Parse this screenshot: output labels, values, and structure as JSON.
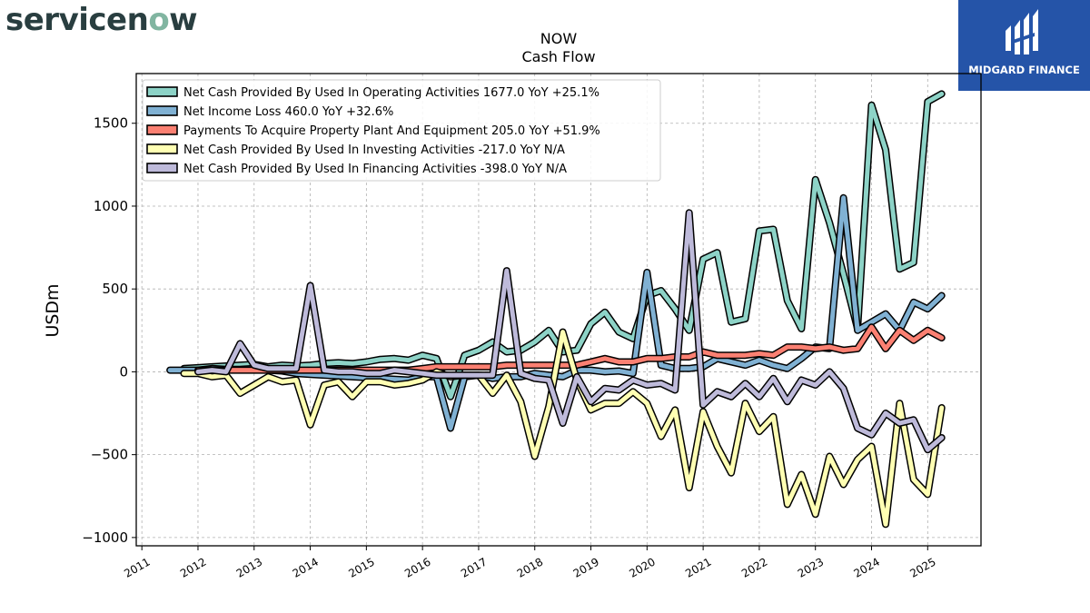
{
  "brand": {
    "logo_text": "servicenow",
    "badge_text": "MIDGARD FINANCE"
  },
  "colors": {
    "operating": "#8dd3c7",
    "net_income": "#80b1d3",
    "capex": "#fb8072",
    "investing": "#ffffb3",
    "financing": "#bebada"
  },
  "chart_data": {
    "type": "line",
    "title": "NOW",
    "subtitle": "Cash Flow",
    "ylabel": "USDm",
    "xlabel": "",
    "ylim": [
      -1050,
      1800
    ],
    "xlim": [
      2010.9,
      2025.95
    ],
    "yticks": [
      -1000,
      -500,
      0,
      500,
      1000,
      1500
    ],
    "ytick_labels": [
      "−1000",
      "−500",
      "0",
      "500",
      "1000",
      "1500"
    ],
    "xticks": [
      2011,
      2012,
      2013,
      2014,
      2015,
      2016,
      2017,
      2018,
      2019,
      2020,
      2021,
      2022,
      2023,
      2024,
      2025
    ],
    "xtick_labels": [
      "2011",
      "2012",
      "2013",
      "2014",
      "2015",
      "2016",
      "2017",
      "2018",
      "2019",
      "2020",
      "2021",
      "2022",
      "2023",
      "2024",
      "2025"
    ],
    "grid": true,
    "legend_position": "top-left",
    "x": [
      2011.5,
      2011.75,
      2012.0,
      2012.25,
      2012.5,
      2012.75,
      2013.0,
      2013.25,
      2013.5,
      2013.75,
      2014.0,
      2014.25,
      2014.5,
      2014.75,
      2015.0,
      2015.25,
      2015.5,
      2015.75,
      2016.0,
      2016.25,
      2016.5,
      2016.75,
      2017.0,
      2017.25,
      2017.5,
      2017.75,
      2018.0,
      2018.25,
      2018.5,
      2018.75,
      2019.0,
      2019.25,
      2019.5,
      2019.75,
      2020.0,
      2020.25,
      2020.5,
      2020.75,
      2021.0,
      2021.25,
      2021.5,
      2021.75,
      2022.0,
      2022.25,
      2022.5,
      2022.75,
      2023.0,
      2023.25,
      2023.5,
      2023.75,
      2024.0,
      2024.25,
      2024.5,
      2024.75,
      2025.0,
      2025.25
    ],
    "series": [
      {
        "name": "Net Cash Provided By Used In Operating Activities",
        "legend": "Net Cash Provided By Used In Operating Activities  1677.0 YoY +25.1%",
        "color": "#8dd3c7",
        "values": [
          null,
          20,
          25,
          30,
          35,
          40,
          45,
          30,
          40,
          35,
          40,
          50,
          55,
          50,
          60,
          75,
          80,
          70,
          100,
          80,
          -150,
          100,
          130,
          180,
          120,
          130,
          180,
          250,
          120,
          130,
          290,
          360,
          240,
          200,
          460,
          490,
          380,
          250,
          680,
          720,
          300,
          320,
          850,
          860,
          430,
          260,
          1160,
          900,
          590,
          260,
          1610,
          1340,
          620,
          660,
          1630,
          1677
        ]
      },
      {
        "name": "Net Income Loss",
        "legend": "Net Income Loss  460.0 YoY +32.6%",
        "color": "#80b1d3",
        "values": [
          10,
          10,
          10,
          20,
          15,
          15,
          20,
          10,
          5,
          -10,
          -15,
          -20,
          -25,
          -30,
          -35,
          -40,
          -45,
          -50,
          -30,
          -30,
          -340,
          -30,
          -20,
          -40,
          -30,
          -30,
          -10,
          -20,
          -30,
          10,
          10,
          0,
          5,
          -10,
          600,
          40,
          20,
          20,
          30,
          80,
          60,
          40,
          70,
          40,
          20,
          80,
          150,
          140,
          1050,
          250,
          300,
          350,
          250,
          420,
          380,
          460
        ]
      },
      {
        "name": "Payments To Acquire Property Plant And Equipment",
        "legend": "Payments To Acquire Property Plant And Equipment  205.0 YoY +51.9%",
        "color": "#fb8072",
        "values": [
          null,
          null,
          10,
          10,
          10,
          10,
          10,
          10,
          10,
          10,
          10,
          10,
          10,
          10,
          10,
          10,
          10,
          10,
          20,
          30,
          30,
          30,
          30,
          30,
          40,
          40,
          40,
          40,
          40,
          40,
          60,
          80,
          60,
          60,
          80,
          80,
          90,
          90,
          120,
          100,
          100,
          100,
          110,
          100,
          150,
          150,
          140,
          150,
          130,
          140,
          270,
          140,
          250,
          190,
          250,
          205
        ]
      },
      {
        "name": "Net Cash Provided By Used In Investing Activities",
        "legend": "Net Cash Provided By Used In Investing Activities  -217.0 YoY N/A",
        "color": "#ffffb3",
        "values": [
          null,
          -10,
          -10,
          -30,
          -20,
          -130,
          -80,
          -30,
          -60,
          -50,
          -320,
          -80,
          -60,
          -150,
          -60,
          -60,
          -80,
          -70,
          -50,
          0,
          -30,
          -20,
          -20,
          -130,
          -20,
          -180,
          -510,
          -210,
          240,
          -50,
          -230,
          -190,
          -190,
          -120,
          -190,
          -390,
          -230,
          -700,
          -240,
          -450,
          -610,
          -190,
          -360,
          -270,
          -800,
          -620,
          -860,
          -510,
          -680,
          -530,
          -450,
          -920,
          -190,
          -650,
          -740,
          -217
        ]
      },
      {
        "name": "Net Cash Provided By Used In Financing Activities",
        "legend": "Net Cash Provided By Used In Financing Activities  -398.0 YoY N/A",
        "color": "#bebada",
        "values": [
          null,
          null,
          0,
          10,
          0,
          170,
          40,
          20,
          20,
          20,
          520,
          10,
          0,
          0,
          -10,
          -10,
          10,
          0,
          -10,
          -20,
          -20,
          -20,
          -20,
          -20,
          610,
          -10,
          -40,
          -50,
          -310,
          -30,
          -180,
          -100,
          -110,
          -50,
          -80,
          -70,
          -110,
          960,
          -200,
          -120,
          -150,
          -70,
          -150,
          -40,
          -180,
          -50,
          -80,
          0,
          -100,
          -340,
          -380,
          -250,
          -310,
          -290,
          -470,
          -398
        ]
      }
    ]
  }
}
